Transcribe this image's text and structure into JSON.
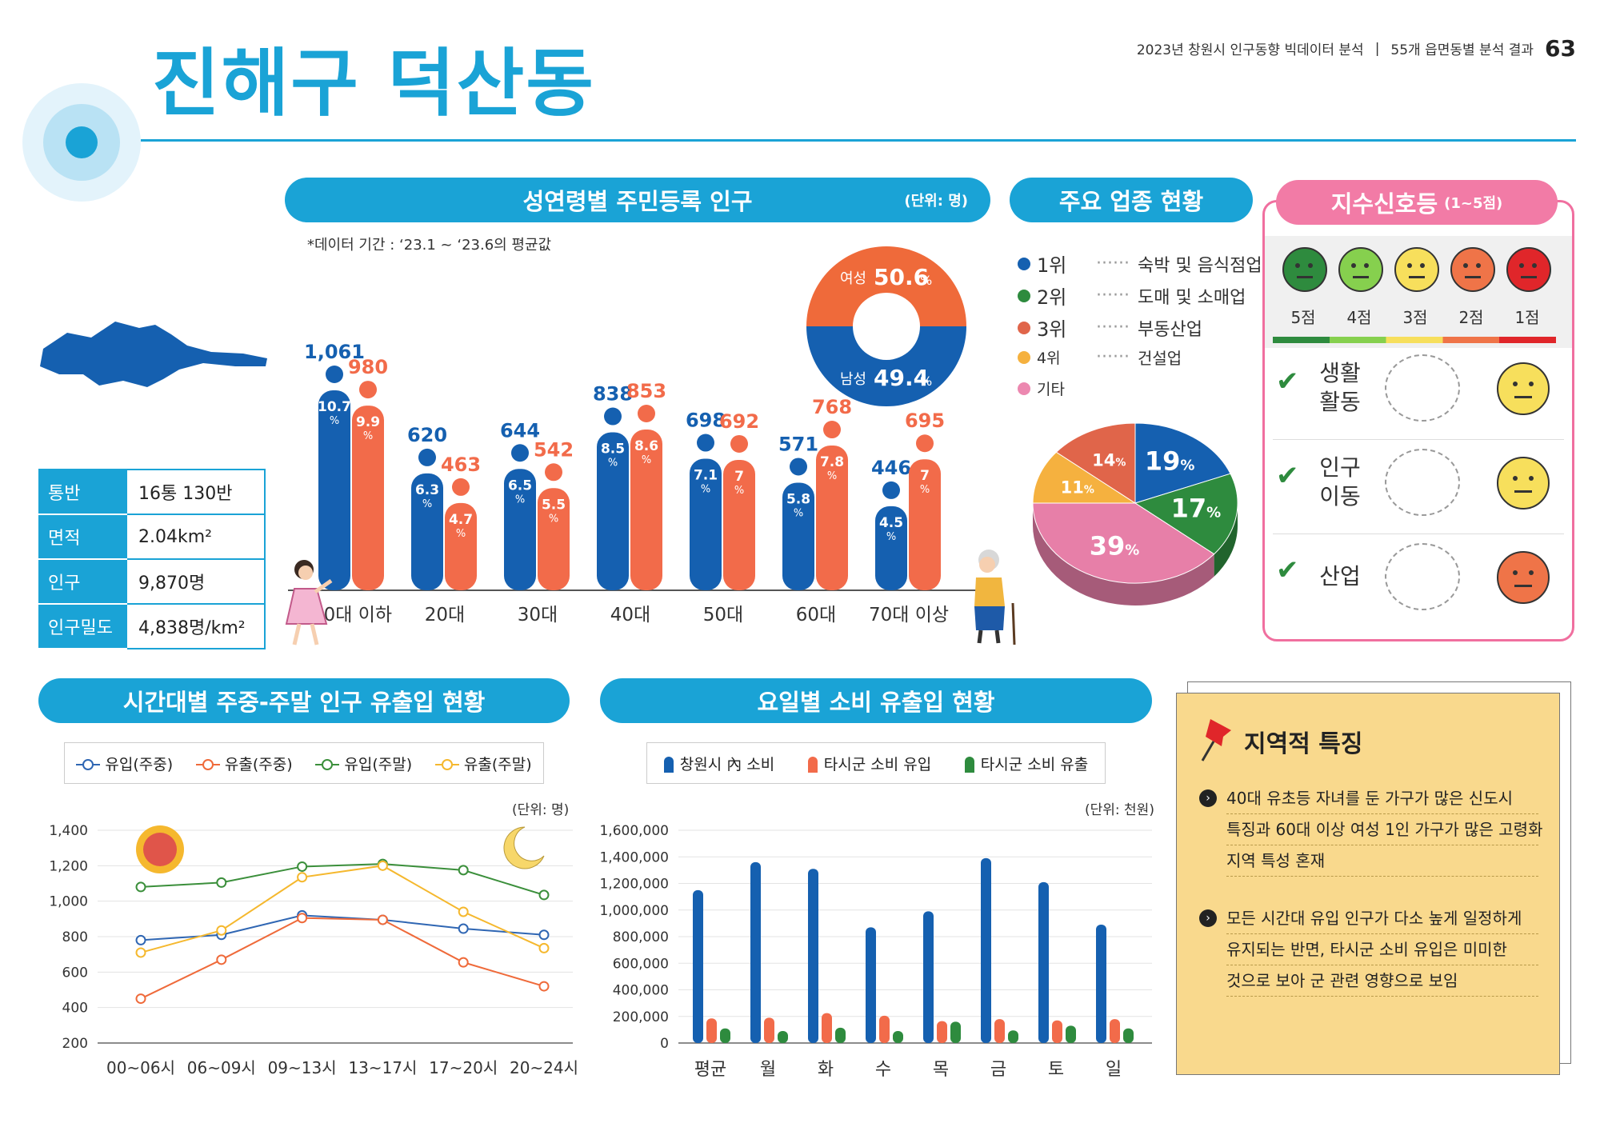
{
  "header": {
    "title": "진해구 덕산동",
    "report": "2023년 창원시 인구동향 빅데이터 분석",
    "section": "55개 읍면동별 분석 결과",
    "page": "63"
  },
  "info_table": [
    {
      "key": "통반",
      "value": "16통 130반"
    },
    {
      "key": "면적",
      "value": "2.04km²"
    },
    {
      "key": "인구",
      "value": "9,870명"
    },
    {
      "key": "인구밀도",
      "value": "4,838명/km²"
    }
  ],
  "population": {
    "title": "성연령별 주민등록 인구",
    "unit": "(단위: 명)",
    "note": "*데이터 기간 : ‘23.1 ~ ‘23.6의 평균값",
    "colors": {
      "male": "#1560b0",
      "female": "#f26b4a"
    },
    "chart_data": {
      "type": "bar",
      "categories": [
        "10대 이하",
        "20대",
        "30대",
        "40대",
        "50대",
        "60대",
        "70대 이상"
      ],
      "series": [
        {
          "values": [
            1061,
            620,
            644,
            838,
            698,
            571,
            446
          ],
          "pct": [
            "10.7",
            "6.3",
            "6.5",
            "8.5",
            "7.1",
            "5.8",
            "4.5"
          ]
        },
        {
          "values": [
            980,
            463,
            542,
            853,
            692,
            768,
            695
          ],
          "pct": [
            "9.9",
            "4.7",
            "5.5",
            "8.6",
            "7",
            "7.8",
            "7"
          ]
        }
      ],
      "value_labels_male": [
        "1,061",
        "620",
        "644",
        "838",
        "698",
        "571",
        "446"
      ],
      "value_labels_female": [
        "980",
        "463",
        "542",
        "853",
        "692",
        "768",
        "695"
      ]
    },
    "donut": {
      "female_label": "여성",
      "female_value": "50.6",
      "male_label": "남성",
      "male_value": "49.4",
      "pct_sign": "%"
    }
  },
  "industry": {
    "title": "주요 업종 현황",
    "legend": [
      {
        "rank": "1위",
        "name": "숙박 및 음식점업",
        "color": "#1560b0"
      },
      {
        "rank": "2위",
        "name": "도매 및 소매업",
        "color": "#2e8b3e"
      },
      {
        "rank": "3위",
        "name": "부동산업",
        "color": "#e0654a"
      },
      {
        "rank": "4위",
        "name": "건설업",
        "color": "#f5b13f"
      },
      {
        "rank": "기타",
        "name": "",
        "color": "#ec88b0"
      }
    ],
    "chart_data": {
      "type": "pie",
      "labels": [
        "숙박 및 음식점업",
        "도매 및 소매업",
        "기타",
        "건설업",
        "부동산업"
      ],
      "values": [
        19,
        17,
        39,
        11,
        14
      ],
      "value_labels": [
        "19",
        "17",
        "39",
        "11",
        "14"
      ],
      "colors": [
        "#1560b0",
        "#2e8b3e",
        "#e77fa8",
        "#f5b13f",
        "#e0654a"
      ]
    },
    "pct_sign": "%"
  },
  "signal": {
    "title": "지수신호등",
    "range": "(1~5점)",
    "scores": [
      "5점",
      "4점",
      "3점",
      "2점",
      "1점"
    ],
    "face_colors": [
      "#2e8b3e",
      "#86d04e",
      "#f7df5c",
      "#ef7448",
      "#e0262a"
    ],
    "items": [
      {
        "line1": "생활",
        "line2": "활동",
        "score": 3
      },
      {
        "line1": "인구",
        "line2": "이동",
        "score": 3
      },
      {
        "line1": "산업",
        "line2": "",
        "score": 2
      }
    ]
  },
  "hourly": {
    "title": "시간대별 주중-주말 인구 유출입 현황",
    "unit": "(단위: 명)",
    "chart_data": {
      "type": "line",
      "categories": [
        "00~06시",
        "06~09시",
        "09~13시",
        "13~17시",
        "17~20시",
        "20~24시"
      ],
      "ylim": [
        200,
        1400
      ],
      "yticks": [
        "1,400",
        "1,200",
        "1,000",
        "800",
        "600",
        "400",
        "200"
      ],
      "series": [
        {
          "name": "유입(주중)",
          "values": [
            780,
            810,
            920,
            895,
            845,
            810
          ],
          "color": "#2f66b3"
        },
        {
          "name": "유출(주중)",
          "values": [
            450,
            670,
            905,
            895,
            655,
            520
          ],
          "color": "#ef6a3a"
        },
        {
          "name": "유입(주말)",
          "values": [
            1080,
            1105,
            1195,
            1210,
            1175,
            1035
          ],
          "color": "#3b8f3b"
        },
        {
          "name": "유출(주말)",
          "values": [
            710,
            835,
            1135,
            1200,
            940,
            735
          ],
          "color": "#f5b82e"
        }
      ]
    }
  },
  "daily": {
    "title": "요일별 소비 유출입 현황",
    "unit": "(단위: 천원)",
    "chart_data": {
      "type": "bar",
      "categories": [
        "평균",
        "월",
        "화",
        "수",
        "목",
        "금",
        "토",
        "일"
      ],
      "ylim": [
        0,
        1600000
      ],
      "yticks": [
        "1,600,000",
        "1,400,000",
        "1,200,000",
        "1,000,000",
        "800,000",
        "600,000",
        "400,000",
        "200,000",
        "0"
      ],
      "series": [
        {
          "name": "창원시 內 소비",
          "values": [
            1150000,
            1360000,
            1310000,
            870000,
            990000,
            1390000,
            1210000,
            890000
          ],
          "color": "#1560b0"
        },
        {
          "name": "타시군 소비 유입",
          "values": [
            185000,
            190000,
            225000,
            205000,
            165000,
            180000,
            170000,
            180000
          ],
          "color": "#f26b4a"
        },
        {
          "name": "타시군 소비 유출",
          "values": [
            110000,
            90000,
            115000,
            90000,
            160000,
            95000,
            130000,
            110000
          ],
          "color": "#2e8b3e"
        }
      ]
    }
  },
  "features": {
    "title": "지역적 특징",
    "items": [
      {
        "lines": [
          "40대 유초등 자녀를 둔 가구가 많은 신도시",
          "특징과 60대 이상 여성 1인 가구가 많은 고령화",
          "지역 특성 혼재"
        ]
      },
      {
        "lines": [
          "모든 시간대 유입 인구가 다소 높게 일정하게",
          "유지되는 반면, 타시군 소비 유입은 미미한",
          "것으로 보아 군 관련 영향으로 보임"
        ]
      }
    ]
  }
}
